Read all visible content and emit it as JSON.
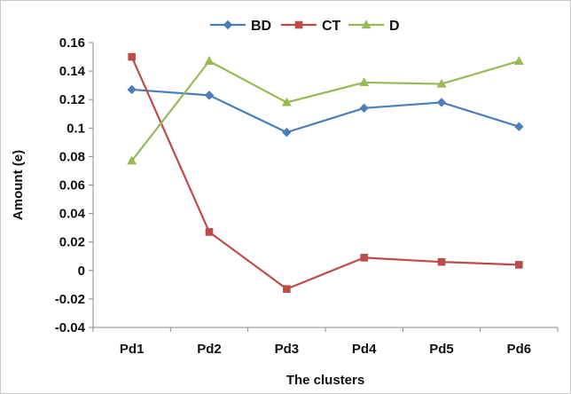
{
  "chart_data": {
    "type": "line",
    "categories": [
      "Pd1",
      "Pd2",
      "Pd3",
      "Pd4",
      "Pd5",
      "Pd6"
    ],
    "series": [
      {
        "name": "BD",
        "color": "#4a7ebb",
        "marker": "diamond",
        "values": [
          0.127,
          0.123,
          0.097,
          0.114,
          0.118,
          0.101
        ]
      },
      {
        "name": "CT",
        "color": "#be4b48",
        "marker": "square",
        "values": [
          0.15,
          0.027,
          -0.013,
          0.009,
          0.006,
          0.004
        ]
      },
      {
        "name": "D",
        "color": "#98b954",
        "marker": "triangle",
        "values": [
          0.077,
          0.147,
          0.118,
          0.132,
          0.131,
          0.147
        ]
      }
    ],
    "yticks": [
      "-0.04",
      "-0.02",
      "0",
      "0.02",
      "0.04",
      "0.06",
      "0.08",
      "0.1",
      "0.12",
      "0.14",
      "0.16"
    ],
    "ylim": [
      -0.04,
      0.16
    ],
    "xlabel": "The clusters",
    "ylabel": "Amount (e)",
    "legend_position": "top",
    "grid": false
  }
}
